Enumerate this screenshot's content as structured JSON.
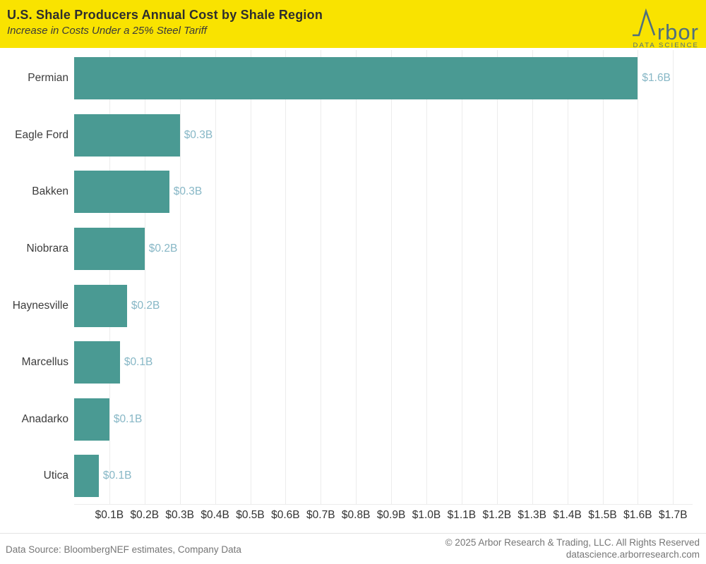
{
  "header": {
    "title": "U.S. Shale Producers Annual Cost by Shale Region",
    "subtitle": "Increase in Costs Under a 25% Steel Tariff",
    "background_color": "#f9e300",
    "logo": {
      "brand_name": "Arbor",
      "wordmark_text": "rbor",
      "tagline": "DATA SCIENCE",
      "color": "#4f6f7e"
    }
  },
  "chart_data": {
    "type": "bar",
    "orientation": "horizontal",
    "title": "U.S. Shale Producers Annual Cost by Shale Region",
    "subtitle": "Increase in Costs Under a 25% Steel Tariff",
    "categories": [
      "Permian",
      "Eagle Ford",
      "Bakken",
      "Niobrara",
      "Haynesville",
      "Marcellus",
      "Anadarko",
      "Utica"
    ],
    "values": [
      1.6,
      0.3,
      0.27,
      0.2,
      0.15,
      0.13,
      0.1,
      0.07
    ],
    "value_labels": [
      "$1.6B",
      "$0.3B",
      "$0.3B",
      "$0.2B",
      "$0.2B",
      "$0.1B",
      "$0.1B",
      "$0.1B"
    ],
    "x_ticks": [
      "$0.1B",
      "$0.2B",
      "$0.3B",
      "$0.4B",
      "$0.5B",
      "$0.6B",
      "$0.7B",
      "$0.8B",
      "$0.9B",
      "$1.0B",
      "$1.1B",
      "$1.2B",
      "$1.3B",
      "$1.4B",
      "$1.5B",
      "$1.6B",
      "$1.7B"
    ],
    "xlim": [
      0,
      1.755
    ],
    "unit": "billions USD",
    "grid": true,
    "legend": "none",
    "bar_color": "#4a9a93",
    "value_label_color": "#87b7c6",
    "gridline_color": "#ececec"
  },
  "footer": {
    "source": "Data Source: BloombergNEF estimates, Company Data",
    "copyright": "© 2025 Arbor Research & Trading, LLC. All Rights Reserved",
    "website": "datascience.arborresearch.com"
  }
}
